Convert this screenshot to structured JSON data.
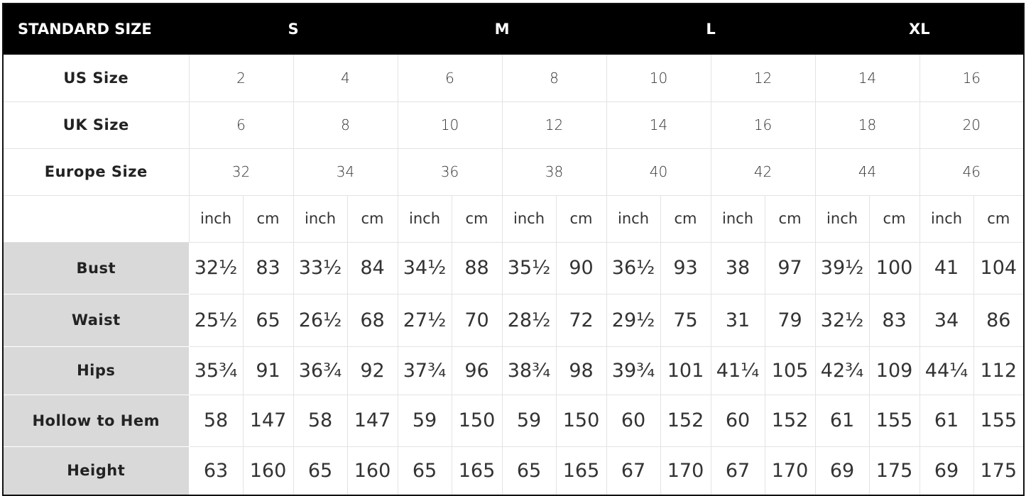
{
  "header": {
    "title": "STANDARD SIZE",
    "groups": [
      "S",
      "M",
      "L",
      "XL"
    ]
  },
  "size_rows": [
    {
      "label": "US Size",
      "values": [
        2,
        4,
        6,
        8,
        10,
        12,
        14,
        16
      ]
    },
    {
      "label": "UK Size",
      "values": [
        6,
        8,
        10,
        12,
        14,
        16,
        18,
        20
      ]
    },
    {
      "label": "Europe Size",
      "values": [
        32,
        34,
        36,
        38,
        40,
        42,
        44,
        46
      ]
    }
  ],
  "units": [
    "inch",
    "cm"
  ],
  "measurements": [
    {
      "label": "Bust",
      "values": [
        "32½",
        83,
        "33½",
        84,
        "34½",
        88,
        "35½",
        90,
        "36½",
        93,
        38,
        97,
        "39½",
        100,
        41,
        104
      ]
    },
    {
      "label": "Waist",
      "values": [
        "25½",
        65,
        "26½",
        68,
        "27½",
        70,
        "28½",
        72,
        "29½",
        75,
        31,
        79,
        "32½",
        83,
        34,
        86
      ]
    },
    {
      "label": "Hips",
      "values": [
        "35¾",
        91,
        "36¾",
        92,
        "37¾",
        96,
        "38¾",
        98,
        "39¾",
        101,
        "41¼",
        105,
        "42¾",
        109,
        "44¼",
        112
      ]
    },
    {
      "label": "Hollow to Hem",
      "values": [
        58,
        147,
        58,
        147,
        59,
        150,
        59,
        150,
        60,
        152,
        60,
        152,
        61,
        155,
        61,
        155
      ]
    },
    {
      "label": "Height",
      "values": [
        63,
        160,
        65,
        160,
        65,
        165,
        65,
        165,
        67,
        170,
        67,
        170,
        69,
        175,
        69,
        175
      ]
    }
  ]
}
